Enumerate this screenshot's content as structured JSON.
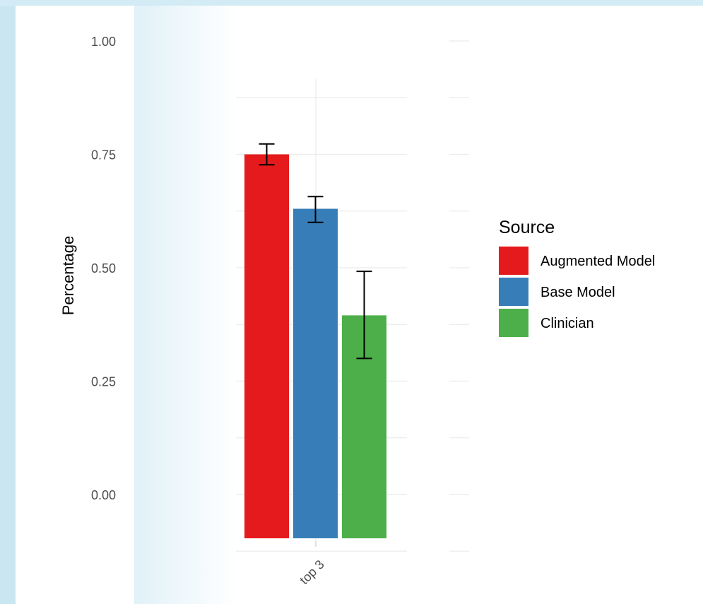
{
  "chart_data": {
    "type": "bar",
    "title": "",
    "xlabel": "",
    "ylabel": "Percentage",
    "categories": [
      "top 3"
    ],
    "ylim": [
      -0.1,
      1.05
    ],
    "yticks": [
      0.0,
      0.25,
      0.5,
      0.75,
      1.0
    ],
    "ytick_labels": [
      "0.00",
      "0.25",
      "0.50",
      "0.75",
      "1.00"
    ],
    "series": [
      {
        "name": "Augmented Model",
        "values": [
          0.75
        ],
        "error_low": [
          0.727
        ],
        "error_high": [
          0.773
        ],
        "color": "#e41a1c"
      },
      {
        "name": "Base Model",
        "values": [
          0.63
        ],
        "error_low": [
          0.6
        ],
        "error_high": [
          0.657
        ],
        "color": "#377eb8"
      },
      {
        "name": "Clinician",
        "values": [
          0.395
        ],
        "error_low": [
          0.3
        ],
        "error_high": [
          0.492
        ],
        "color": "#4daf4a"
      }
    ],
    "legend": {
      "title": "Source",
      "placement": "right"
    },
    "grid": true
  }
}
